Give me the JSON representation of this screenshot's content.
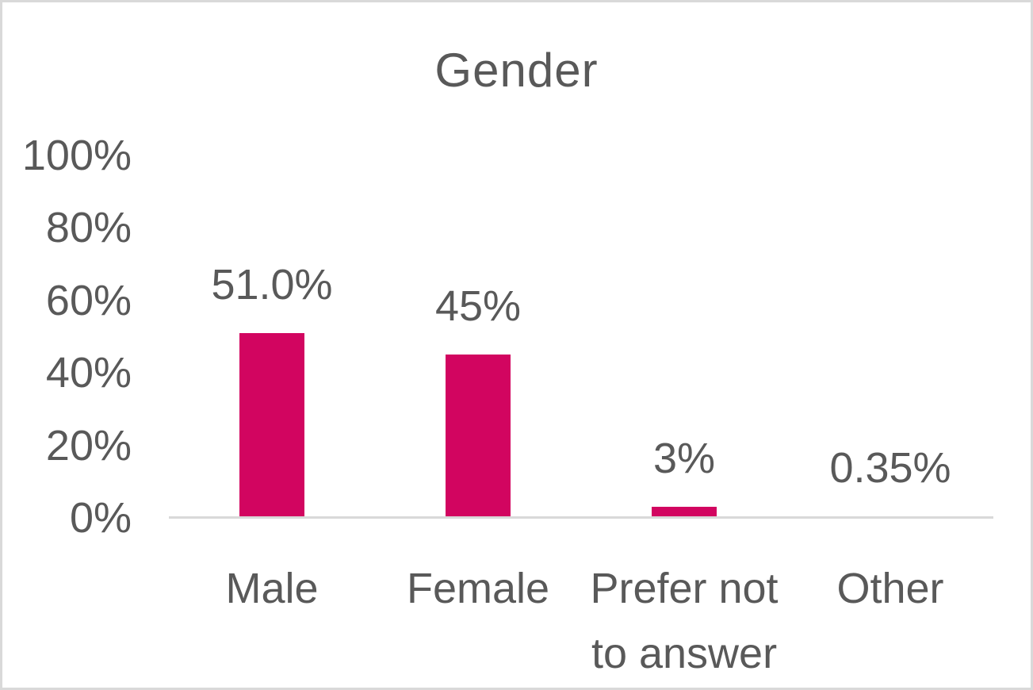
{
  "chart_data": {
    "type": "bar",
    "title": "Gender",
    "categories": [
      "Male",
      "Female",
      "Prefer not to answer",
      "Other"
    ],
    "values": [
      51.0,
      45,
      3,
      0.35
    ],
    "data_labels": [
      "51.0%",
      "45%",
      "3%",
      "0.35%"
    ],
    "y_ticks": [
      "0%",
      "20%",
      "40%",
      "60%",
      "80%",
      "100%"
    ],
    "y_tick_values": [
      0,
      20,
      40,
      60,
      80,
      100
    ],
    "ylim": [
      0,
      100
    ],
    "xlabel": "",
    "ylabel": "",
    "grid": false,
    "legend": false,
    "bar_color": "#D20560",
    "axis_line_color": "#D9D9D9",
    "text_color": "#595959",
    "frame_border_color": "#D9D9D9",
    "background": "#FFFFFF"
  }
}
